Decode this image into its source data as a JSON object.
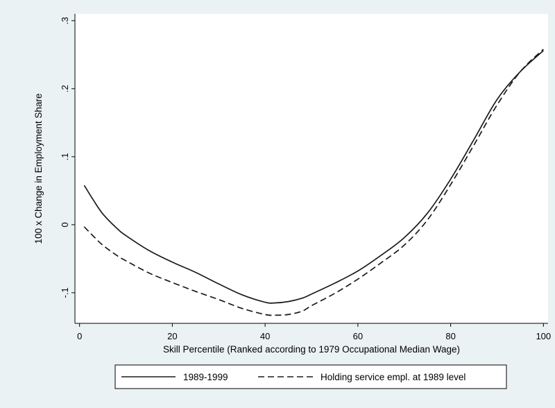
{
  "chart_data": {
    "type": "line",
    "title": "",
    "xlabel": "Skill Percentile (Ranked according to 1979 Occupational Median Wage)",
    "ylabel": "100 x Change in Employment Share",
    "xlim": [
      -1,
      101
    ],
    "ylim": [
      -0.145,
      0.31
    ],
    "xticks": [
      0,
      20,
      40,
      60,
      80,
      100
    ],
    "xtick_labels": [
      "0",
      "20",
      "40",
      "60",
      "80",
      "100"
    ],
    "yticks": [
      -0.1,
      0,
      0.1,
      0.2,
      0.3
    ],
    "ytick_labels": [
      "-.1",
      "0",
      ".1",
      ".2",
      ".3"
    ],
    "grid": false,
    "legend_position": "bottom",
    "series": [
      {
        "name": "1989-1999",
        "style": "solid",
        "color": "#1a1a1a",
        "x": [
          1,
          3,
          5,
          8,
          10,
          15,
          20,
          25,
          30,
          35,
          40,
          42,
          45,
          48,
          50,
          55,
          60,
          65,
          70,
          75,
          80,
          85,
          90,
          95,
          100
        ],
        "y": [
          0.058,
          0.036,
          0.016,
          -0.005,
          -0.016,
          -0.038,
          -0.055,
          -0.07,
          -0.087,
          -0.103,
          -0.114,
          -0.115,
          -0.113,
          -0.108,
          -0.102,
          -0.086,
          -0.068,
          -0.045,
          -0.019,
          0.017,
          0.067,
          0.125,
          0.184,
          0.225,
          0.256
        ]
      },
      {
        "name": "Holding service empl. at 1989 level",
        "style": "dashed",
        "color": "#1a1a1a",
        "x": [
          1,
          3,
          5,
          8,
          10,
          15,
          20,
          25,
          30,
          35,
          40,
          42,
          45,
          48,
          50,
          55,
          60,
          65,
          70,
          75,
          80,
          85,
          90,
          95,
          100
        ],
        "y": [
          -0.003,
          -0.017,
          -0.03,
          -0.045,
          -0.053,
          -0.071,
          -0.085,
          -0.098,
          -0.11,
          -0.123,
          -0.132,
          -0.133,
          -0.132,
          -0.127,
          -0.119,
          -0.101,
          -0.08,
          -0.056,
          -0.03,
          0.007,
          0.059,
          0.117,
          0.176,
          0.225,
          0.258
        ]
      }
    ]
  }
}
